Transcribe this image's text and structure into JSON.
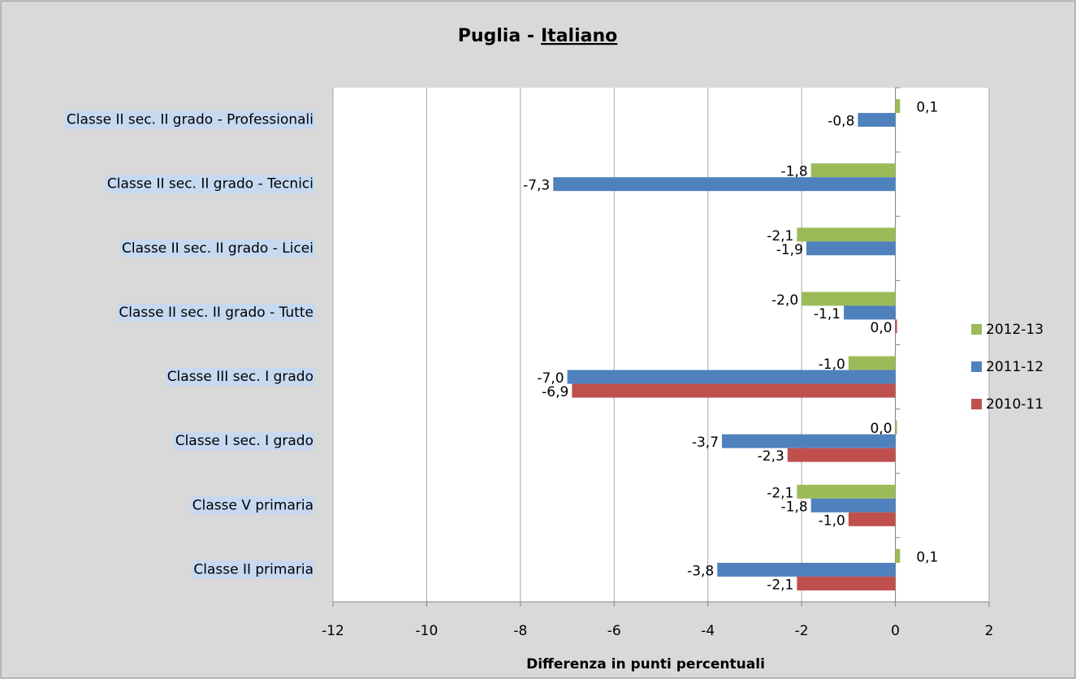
{
  "chart_data": {
    "type": "bar",
    "orientation": "horizontal",
    "title": [
      "Puglia -",
      "Italiano"
    ],
    "xlabel": "Differenza in punti percentuali",
    "categories": [
      "Classe II sec. II grado - Professionali",
      "Classe II sec. II grado - Tecnici",
      "Classe II sec. II grado - Licei",
      "Classe II sec. II grado - Tutte",
      "Classe III sec. I grado",
      "Classe I sec. I grado",
      "Classe V primaria",
      "Classe II primaria"
    ],
    "series": [
      {
        "name": "2012-13",
        "color": "#9bbb59",
        "values": [
          0.1,
          -1.8,
          -2.1,
          -2.0,
          -1.0,
          0.0,
          -2.1,
          0.1
        ],
        "value_labels": [
          "0,1",
          "-1,8",
          "-2,1",
          "-2,0",
          "-1,0",
          "0,0",
          "-2,1",
          "0,1"
        ]
      },
      {
        "name": "2011-12",
        "color": "#4f81bd",
        "values": [
          -0.8,
          -7.3,
          -1.9,
          -1.1,
          -7.0,
          -3.7,
          -1.8,
          -3.8
        ],
        "value_labels": [
          "-0,8",
          "-7,3",
          "-1,9",
          "-1,1",
          "-7,0",
          "-3,7",
          "-1,8",
          "-3,8"
        ]
      },
      {
        "name": "2010-11",
        "color": "#c0504d",
        "values": [
          null,
          null,
          null,
          0.0,
          -6.9,
          -2.3,
          -1.0,
          -2.1
        ],
        "value_labels": [
          null,
          null,
          null,
          "0,0",
          "-6,9",
          "-2,3",
          "-1,0",
          "-2,1"
        ]
      }
    ],
    "xlim": [
      -12,
      2
    ],
    "xticks": [
      -12,
      -10,
      -8,
      -6,
      -4,
      -2,
      0,
      2
    ],
    "grid": true,
    "legend": "right"
  }
}
